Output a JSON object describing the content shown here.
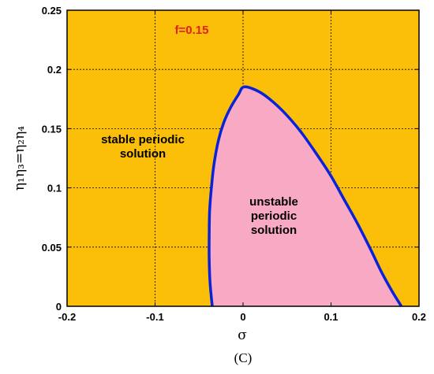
{
  "chart_data": {
    "type": "area",
    "xlabel": "σ",
    "ylabel": "η₁η₃=η₂η₄",
    "xlim": [
      -0.2,
      0.2
    ],
    "ylim": [
      0,
      0.25
    ],
    "xticks": [
      "-0.2",
      "-0.1",
      "0",
      "0.1",
      "0.2"
    ],
    "yticks": [
      "0",
      "0.05",
      "0.1",
      "0.15",
      "0.2",
      "0.25"
    ],
    "grid": true,
    "annotations": {
      "parameter": "f=0.15",
      "stable_region": [
        "stable periodic",
        "solution"
      ],
      "unstable_region": [
        "unstable",
        "periodic",
        "solution"
      ]
    },
    "series": [
      {
        "x": [
          -0.035,
          -0.0375,
          -0.0385,
          -0.0385,
          -0.038,
          -0.036,
          -0.033,
          -0.028,
          -0.022,
          -0.014,
          -0.005,
          0.0,
          0.01,
          0.025,
          0.045,
          0.065,
          0.085,
          0.1,
          0.115,
          0.13,
          0.145,
          0.158,
          0.17,
          0.18
        ],
        "y": [
          0.0,
          0.02,
          0.04,
          0.06,
          0.08,
          0.1,
          0.12,
          0.14,
          0.155,
          0.168,
          0.179,
          0.185,
          0.184,
          0.178,
          0.165,
          0.148,
          0.127,
          0.11,
          0.09,
          0.07,
          0.048,
          0.028,
          0.012,
          0.0
        ]
      }
    ],
    "colors": {
      "stable_fill": "#fbbf0a",
      "unstable_fill": "#f8a9c3",
      "boundary": "#0a23d8",
      "parameter_text": "#e0201a"
    }
  },
  "caption": "(C)"
}
